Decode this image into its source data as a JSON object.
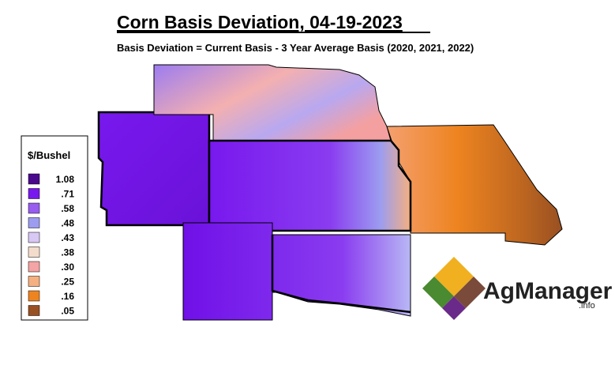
{
  "header": {
    "title": "Corn Basis Deviation, 04-19-2023",
    "subtitle": "Basis Deviation = Current Basis - 3 Year Average Basis (2020, 2021, 2022)"
  },
  "legend": {
    "title": "$/Bushel",
    "items": [
      {
        "label": "1.08",
        "color": "#4a0a8c"
      },
      {
        "label": ".71",
        "color": "#7818ee"
      },
      {
        "label": ".58",
        "color": "#985cf0"
      },
      {
        "label": ".48",
        "color": "#9c9cf0"
      },
      {
        "label": ".43",
        "color": "#d8c8f4"
      },
      {
        "label": ".38",
        "color": "#f4dccc"
      },
      {
        "label": ".30",
        "color": "#f4a4a4"
      },
      {
        "label": ".25",
        "color": "#f4b080"
      },
      {
        "label": ".16",
        "color": "#ee8420"
      },
      {
        "label": ".05",
        "color": "#995022"
      }
    ]
  },
  "logo": {
    "name": "AgManager",
    "suffix": ".info"
  }
}
